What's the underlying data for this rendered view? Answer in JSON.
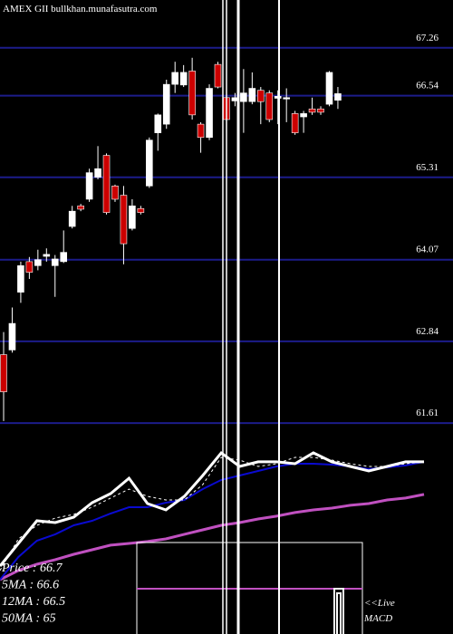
{
  "chart_data": [
    {
      "type": "candlestick",
      "title": "AMEX  GII bullkhan.munafasutra.com",
      "ylim": [
        61.57,
        67.98
      ],
      "yticks": [
        67.26,
        66.54,
        65.31,
        64.07,
        62.84,
        61.61
      ],
      "grid": true,
      "up_color": "#ffffff",
      "down_color": "#cc0000",
      "grid_color": "#1c1c8a",
      "open": [
        62.64,
        62.71,
        63.58,
        64.04,
        63.98,
        64.12,
        63.98,
        64.04,
        64.57,
        64.88,
        64.98,
        65.31,
        65.64,
        65.18,
        65.04,
        64.54,
        64.84,
        65.18,
        65.98,
        66.11,
        66.71,
        66.7,
        66.91,
        66.11,
        65.91,
        67.01,
        66.51,
        66.46,
        66.45,
        66.45,
        66.62,
        66.58,
        66.5,
        66.49,
        66.27,
        66.22,
        66.34,
        66.34,
        66.41,
        66.47
      ],
      "high": [
        62.98,
        63.35,
        64.04,
        64.11,
        64.22,
        64.24,
        64.14,
        64.51,
        64.88,
        64.91,
        65.44,
        65.78,
        65.67,
        65.2,
        65.18,
        64.98,
        64.88,
        65.91,
        66.27,
        66.78,
        67.05,
        67.0,
        67.11,
        66.14,
        66.71,
        67.05,
        66.54,
        66.58,
        66.94,
        66.89,
        66.67,
        66.62,
        66.62,
        66.65,
        66.31,
        66.31,
        66.51,
        66.38,
        66.91,
        66.67
      ],
      "low": [
        61.64,
        62.67,
        63.42,
        63.78,
        63.91,
        64.04,
        63.51,
        64.02,
        64.54,
        64.8,
        64.94,
        65.28,
        64.75,
        64.94,
        64.0,
        64.51,
        64.75,
        65.15,
        65.71,
        66.04,
        66.58,
        66.67,
        66.18,
        65.68,
        65.87,
        66.65,
        65.98,
        66.38,
        65.98,
        66.41,
        66.11,
        66.14,
        66.11,
        66.14,
        65.95,
        65.98,
        66.25,
        66.25,
        66.38,
        66.34
      ],
      "close": [
        62.08,
        63.11,
        63.98,
        63.88,
        64.07,
        64.15,
        64.08,
        64.18,
        64.8,
        64.83,
        65.38,
        65.44,
        64.78,
        64.98,
        64.31,
        64.88,
        64.78,
        65.87,
        66.25,
        66.71,
        66.89,
        66.89,
        66.25,
        65.91,
        66.65,
        66.67,
        66.18,
        66.51,
        66.58,
        66.65,
        66.45,
        66.18,
        66.53,
        66.51,
        65.98,
        66.27,
        66.29,
        66.29,
        66.89,
        66.57
      ]
    },
    {
      "type": "line",
      "ylim": [
        0,
        100
      ],
      "series": [
        {
          "name": "Price  : 66.7",
          "color": "#ffffff",
          "width": 3,
          "dashed": false,
          "values": [
            9.4,
            25,
            40.6,
            39.4,
            43.1,
            53.1,
            59.4,
            70,
            52.5,
            48.1,
            57.5,
            71.9,
            87.5,
            78.1,
            81.3,
            81.3,
            80,
            87.5,
            81.3,
            78.1,
            75,
            78.1,
            81.3,
            81.3
          ]
        },
        {
          "name": "5MA   : 66.6",
          "color": "#ffffff",
          "width": 1,
          "dashed": true,
          "values": [
            6.3,
            28.1,
            37.5,
            42.5,
            45,
            50,
            56.3,
            62.5,
            57.5,
            55,
            55,
            65.6,
            84.4,
            82.5,
            78.1,
            80,
            84.4,
            84.4,
            82.5,
            80,
            78.1,
            78.1,
            80,
            81.3
          ]
        },
        {
          "name": "12MA : 66.5",
          "color": "#0a0ad0",
          "width": 2,
          "dashed": false,
          "values": [
            0,
            15.6,
            26.9,
            31.3,
            37.5,
            40.6,
            45.6,
            50,
            50,
            53.1,
            55,
            62.5,
            68.8,
            71.9,
            75,
            78.1,
            80,
            80,
            79.4,
            78.1,
            76.3,
            77.5,
            78.8,
            81.3
          ]
        },
        {
          "name": "50MA : 65",
          "color": "#c050c0",
          "width": 3,
          "dashed": false,
          "values": [
            0,
            6.3,
            10.6,
            13.8,
            17.5,
            20.6,
            23.8,
            25,
            26.3,
            28.1,
            31.3,
            34.4,
            37.5,
            39.4,
            41.9,
            43.8,
            46.3,
            48.1,
            49.4,
            51.3,
            52.5,
            55,
            56.3,
            58.8
          ]
        }
      ],
      "live_label": "<<Live",
      "macd_label": "MACD"
    }
  ]
}
